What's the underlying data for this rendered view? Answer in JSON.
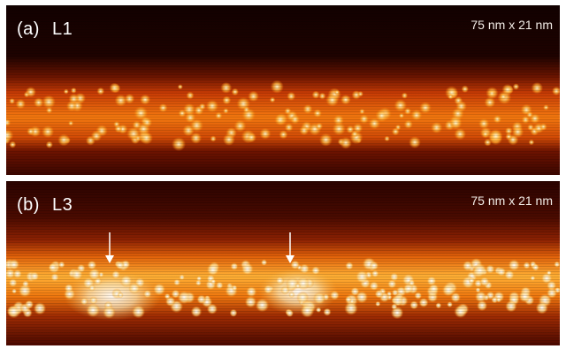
{
  "panels": [
    {
      "id": "a",
      "letter": "(a)",
      "layer": "L1",
      "scale": "75 nm x 21 nm",
      "arrows": 0
    },
    {
      "id": "b",
      "letter": "(b)",
      "layer": "L3",
      "scale": "75 nm x 21 nm",
      "arrows": 2
    }
  ],
  "colors": {
    "background_dark": "#140100",
    "band_mid": "#c23a05",
    "band_bright": "#ff9a1a",
    "highlight": "#fff6d0",
    "arrow": "#ffffff"
  }
}
